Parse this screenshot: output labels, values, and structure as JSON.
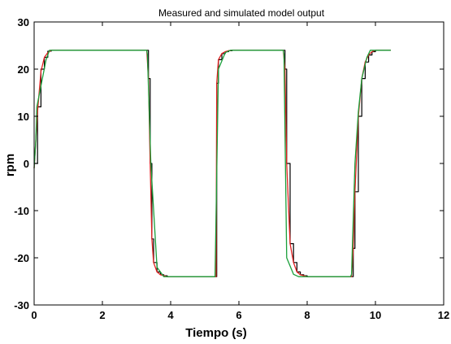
{
  "chart_data": {
    "type": "line",
    "title": "Measured and simulated model output",
    "xlabel": "Tiempo (s)",
    "ylabel": "rpm",
    "xlim": [
      0,
      12
    ],
    "ylim": [
      -30,
      30
    ],
    "xticks": [
      "0",
      "2",
      "4",
      "6",
      "8",
      "10",
      "12"
    ],
    "yticks": [
      "30",
      "20",
      "10",
      "0",
      "-10",
      "-20",
      "-30"
    ],
    "grid": false,
    "colors": {
      "measured": "#000000",
      "simulated_red": "#e32222",
      "simulated_green": "#1a9f3a"
    },
    "series": [
      {
        "x": [
          0.0,
          0.1,
          0.2,
          0.3,
          0.4,
          0.5,
          1.0,
          2.0,
          3.0,
          3.3,
          3.35,
          3.4,
          3.45,
          3.5,
          3.6,
          3.7,
          3.8,
          3.9,
          4.0,
          4.2,
          4.6,
          5.0,
          5.33,
          5.35,
          5.4,
          5.5,
          5.6,
          5.7,
          5.8,
          5.9,
          6.0,
          6.2,
          6.6,
          7.0,
          7.3,
          7.35,
          7.4,
          7.5,
          7.6,
          7.7,
          7.8,
          7.9,
          8.0,
          8.2,
          8.6,
          9.0,
          9.3,
          9.35,
          9.4,
          9.5,
          9.6,
          9.7,
          9.8,
          9.9,
          10.0,
          10.2,
          10.45
        ],
        "values": [
          0,
          12,
          20,
          22.5,
          23.8,
          24,
          24,
          24,
          24,
          24,
          18,
          0,
          -16,
          -21,
          -23,
          -23.6,
          -23.8,
          -24,
          -24,
          -24,
          -24,
          -24,
          -24,
          17,
          22,
          23.3,
          23.7,
          23.9,
          24,
          24,
          24,
          24,
          24,
          24,
          24,
          20,
          0,
          -17,
          -21,
          -23,
          -23.6,
          -23.8,
          -24,
          -24,
          -24,
          -24,
          -24,
          -18,
          -6,
          10,
          18,
          21.5,
          23,
          23.7,
          24,
          24,
          24
        ]
      },
      {
        "x": [
          0.0,
          0.1,
          0.2,
          0.3,
          0.4,
          0.5,
          1.0,
          2.0,
          3.0,
          3.3,
          3.35,
          3.4,
          3.45,
          3.5,
          3.6,
          3.7,
          3.8,
          3.9,
          4.0,
          4.2,
          4.6,
          5.0,
          5.33,
          5.35,
          5.4,
          5.5,
          5.6,
          5.7,
          5.8,
          5.9,
          6.0,
          6.2,
          6.6,
          7.0,
          7.3,
          7.35,
          7.4,
          7.5,
          7.6,
          7.7,
          7.8,
          7.9,
          8.0,
          8.2,
          8.6,
          9.0,
          9.3,
          9.35,
          9.4,
          9.5,
          9.6,
          9.7,
          9.8,
          9.9,
          10.0,
          10.2,
          10.45
        ],
        "values": [
          -1,
          11,
          19.5,
          22.5,
          23.5,
          24,
          24,
          24,
          24,
          24,
          18,
          0,
          -16,
          -21,
          -23,
          -23.6,
          -23.8,
          -24,
          -24,
          -24,
          -24,
          -24,
          -24,
          17,
          22,
          23.3,
          23.7,
          23.9,
          24,
          24,
          24,
          24,
          24,
          24,
          24,
          20,
          0,
          -17,
          -21,
          -23,
          -23.6,
          -23.8,
          -24,
          -24,
          -24,
          -24,
          -24,
          -18,
          -6,
          10,
          18,
          21.5,
          23,
          23.7,
          24,
          24,
          24
        ]
      },
      {
        "x": [
          0.0,
          0.05,
          0.08,
          0.35,
          0.45,
          3.3,
          3.32,
          3.42,
          3.6,
          3.75,
          3.8,
          5.3,
          5.31,
          5.4,
          5.6,
          5.75,
          5.8,
          7.3,
          7.32,
          7.4,
          7.6,
          7.75,
          7.8,
          9.27,
          9.3,
          9.4,
          9.5,
          9.6,
          9.75,
          9.85,
          10.45
        ],
        "values": [
          -1,
          5,
          12,
          22,
          24,
          24,
          23,
          0,
          -22,
          -23.5,
          -24,
          -24,
          -20,
          20,
          23.5,
          24,
          24,
          24,
          23,
          -20,
          -23.5,
          -24,
          -24,
          -24,
          -23.5,
          0,
          11,
          18,
          22.5,
          24,
          24
        ]
      }
    ]
  }
}
